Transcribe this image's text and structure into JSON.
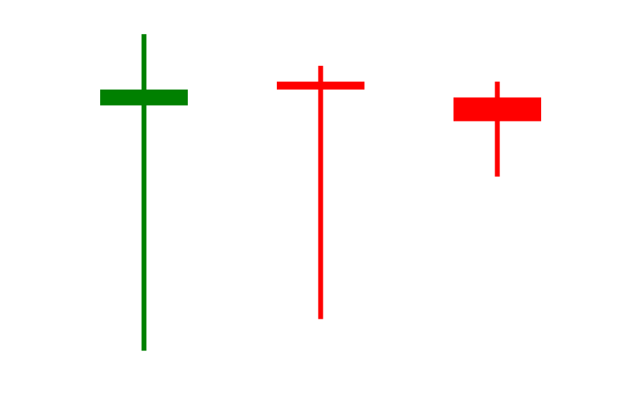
{
  "chart_data": {
    "type": "candlestick",
    "title": "",
    "xlabel": "",
    "ylabel": "",
    "axes_visible": false,
    "grid": false,
    "legend": "none",
    "ylim": [
      0,
      100
    ],
    "colors": {
      "up": "#008000",
      "down": "#ff0000"
    },
    "candles": [
      {
        "open": 76,
        "close": 80,
        "high": 94,
        "low": 14,
        "direction": "up"
      },
      {
        "open": 82,
        "close": 80,
        "high": 86,
        "low": 22,
        "direction": "down"
      },
      {
        "open": 78,
        "close": 72,
        "high": 82,
        "low": 58,
        "direction": "down"
      }
    ]
  }
}
